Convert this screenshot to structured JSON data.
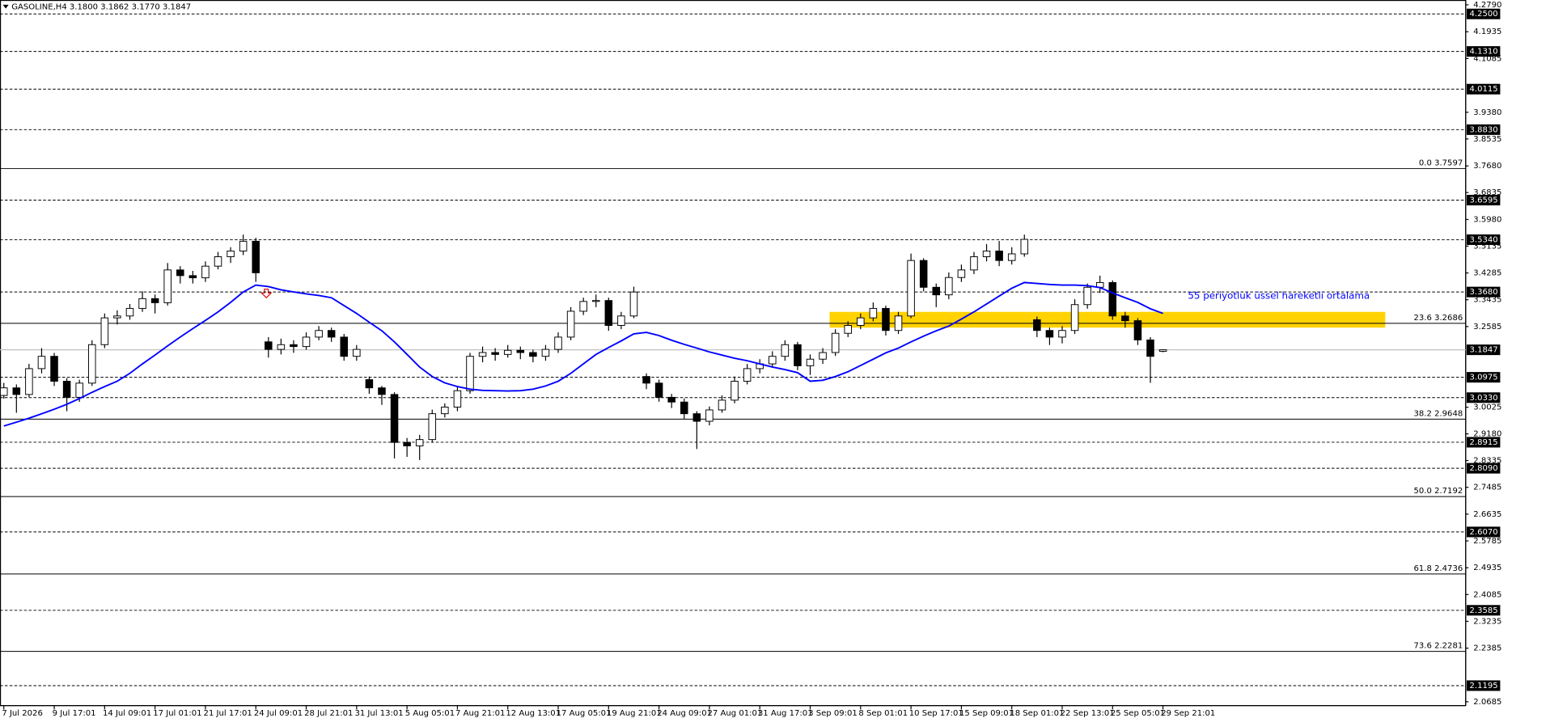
{
  "chart_data": {
    "type": "candlestick",
    "title": "GASOLINE,H4  3.1800 3.1862 3.1770 3.1847",
    "categories": [
      "7 Jul 2026",
      null,
      null,
      null,
      "9 Jul 17:01",
      null,
      null,
      null,
      "14 Jul 09:01",
      null,
      null,
      null,
      "17 Jul 01:01",
      null,
      null,
      null,
      "21 Jul 17:01",
      null,
      null,
      null,
      "24 Jul 09:01",
      null,
      null,
      null,
      "28 Jul 21:01",
      null,
      null,
      null,
      "31 Jul 13:01",
      null,
      null,
      null,
      "5 Aug 05:01",
      null,
      null,
      null,
      "7 Aug 21:01",
      null,
      null,
      null,
      "12 Aug 13:01",
      null,
      null,
      null,
      "17 Aug 05:01",
      null,
      null,
      null,
      "19 Aug 21:01",
      null,
      null,
      null,
      "24 Aug 09:01",
      null,
      null,
      null,
      "27 Aug 01:01",
      null,
      null,
      null,
      "31 Aug 17:01",
      null,
      null,
      null,
      "3 Sep 09:01",
      null,
      null,
      null,
      "8 Sep 01:01",
      null,
      null,
      null,
      "10 Sep 17:01",
      null,
      null,
      null,
      "15 Sep 09:01",
      null,
      null,
      null,
      "18 Sep 01:01",
      null,
      null,
      null,
      "22 Sep 13:01",
      null,
      null,
      null,
      "25 Sep 05:01",
      null,
      null,
      null,
      "29 Sep 21:01"
    ],
    "candles": [
      [
        3.04,
        3.08,
        3.03,
        3.064
      ],
      [
        3.064,
        3.075,
        2.985,
        3.043
      ],
      [
        3.043,
        3.14,
        3.035,
        3.125
      ],
      [
        3.125,
        3.19,
        3.11,
        3.164
      ],
      [
        3.164,
        3.175,
        3.07,
        3.085
      ],
      [
        3.085,
        3.095,
        2.99,
        3.034
      ],
      [
        3.034,
        3.09,
        3.02,
        3.079
      ],
      [
        3.079,
        3.215,
        3.07,
        3.201
      ],
      [
        3.201,
        3.3,
        3.19,
        3.286
      ],
      [
        3.286,
        3.31,
        3.265,
        3.292
      ],
      [
        3.292,
        3.33,
        3.28,
        3.316
      ],
      [
        3.316,
        3.37,
        3.305,
        3.347
      ],
      [
        3.347,
        3.36,
        3.3,
        3.334
      ],
      [
        3.334,
        3.46,
        3.325,
        3.438
      ],
      [
        3.438,
        3.45,
        3.395,
        3.42
      ],
      [
        3.42,
        3.435,
        3.395,
        3.413
      ],
      [
        3.413,
        3.465,
        3.4,
        3.45
      ],
      [
        3.45,
        3.495,
        3.44,
        3.48
      ],
      [
        3.48,
        3.51,
        3.46,
        3.498
      ],
      [
        3.498,
        3.55,
        3.485,
        3.529
      ],
      [
        3.529,
        3.54,
        3.4,
        3.429
      ],
      [
        3.21,
        3.225,
        3.16,
        3.186
      ],
      [
        3.186,
        3.22,
        3.17,
        3.201
      ],
      [
        3.201,
        3.215,
        3.175,
        3.195
      ],
      [
        3.195,
        3.24,
        3.185,
        3.225
      ],
      [
        3.225,
        3.26,
        3.215,
        3.246
      ],
      [
        3.246,
        3.255,
        3.21,
        3.225
      ],
      [
        3.225,
        3.235,
        3.15,
        3.164
      ],
      [
        3.164,
        3.2,
        3.15,
        3.186
      ],
      [
        3.09,
        3.1,
        3.045,
        3.064
      ],
      [
        3.064,
        3.07,
        3.01,
        3.043
      ],
      [
        3.043,
        3.05,
        2.84,
        2.891
      ],
      [
        2.891,
        2.905,
        2.845,
        2.88
      ],
      [
        2.88,
        2.915,
        2.835,
        2.9
      ],
      [
        2.9,
        2.995,
        2.89,
        2.982
      ],
      [
        2.982,
        3.015,
        2.97,
        3.003
      ],
      [
        3.003,
        3.07,
        2.99,
        3.055
      ],
      [
        3.055,
        3.175,
        3.045,
        3.164
      ],
      [
        3.164,
        3.195,
        3.145,
        3.176
      ],
      [
        3.176,
        3.19,
        3.15,
        3.17
      ],
      [
        3.17,
        3.2,
        3.16,
        3.183
      ],
      [
        3.183,
        3.195,
        3.155,
        3.176
      ],
      [
        3.176,
        3.185,
        3.145,
        3.164
      ],
      [
        3.164,
        3.2,
        3.15,
        3.186
      ],
      [
        3.186,
        3.24,
        3.175,
        3.225
      ],
      [
        3.225,
        3.32,
        3.215,
        3.307
      ],
      [
        3.307,
        3.35,
        3.295,
        3.338
      ],
      [
        3.338,
        3.36,
        3.32,
        3.341
      ],
      [
        3.341,
        3.35,
        3.245,
        3.262
      ],
      [
        3.262,
        3.305,
        3.25,
        3.292
      ],
      [
        3.292,
        3.385,
        3.285,
        3.368
      ],
      [
        3.1,
        3.11,
        3.06,
        3.079
      ],
      [
        3.079,
        3.09,
        3.02,
        3.034
      ],
      [
        3.034,
        3.045,
        3.0,
        3.019
      ],
      [
        3.019,
        3.03,
        2.965,
        2.982
      ],
      [
        2.982,
        2.99,
        2.87,
        2.958
      ],
      [
        2.958,
        3.005,
        2.945,
        2.994
      ],
      [
        2.994,
        3.04,
        2.985,
        3.025
      ],
      [
        3.025,
        3.1,
        3.015,
        3.085
      ],
      [
        3.085,
        3.14,
        3.075,
        3.125
      ],
      [
        3.125,
        3.155,
        3.11,
        3.14
      ],
      [
        3.14,
        3.18,
        3.13,
        3.164
      ],
      [
        3.164,
        3.215,
        3.15,
        3.201
      ],
      [
        3.201,
        3.21,
        3.12,
        3.134
      ],
      [
        3.134,
        3.17,
        3.105,
        3.155
      ],
      [
        3.155,
        3.19,
        3.14,
        3.176
      ],
      [
        3.176,
        3.25,
        3.165,
        3.237
      ],
      [
        3.237,
        3.275,
        3.225,
        3.262
      ],
      [
        3.262,
        3.3,
        3.25,
        3.286
      ],
      [
        3.286,
        3.335,
        3.275,
        3.316
      ],
      [
        3.316,
        3.325,
        3.23,
        3.246
      ],
      [
        3.246,
        3.305,
        3.235,
        3.292
      ],
      [
        3.292,
        3.49,
        3.285,
        3.468
      ],
      [
        3.468,
        3.475,
        3.37,
        3.383
      ],
      [
        3.383,
        3.395,
        3.32,
        3.359
      ],
      [
        3.359,
        3.43,
        3.345,
        3.414
      ],
      [
        3.414,
        3.455,
        3.4,
        3.438
      ],
      [
        3.438,
        3.495,
        3.425,
        3.48
      ],
      [
        3.48,
        3.52,
        3.465,
        3.498
      ],
      [
        3.498,
        3.53,
        3.45,
        3.468
      ],
      [
        3.468,
        3.51,
        3.455,
        3.489
      ],
      [
        3.489,
        3.55,
        3.48,
        3.535
      ],
      [
        3.28,
        3.29,
        3.225,
        3.246
      ],
      [
        3.246,
        3.255,
        3.2,
        3.225
      ],
      [
        3.225,
        3.26,
        3.205,
        3.246
      ],
      [
        3.246,
        3.345,
        3.235,
        3.328
      ],
      [
        3.328,
        3.395,
        3.315,
        3.383
      ],
      [
        3.383,
        3.42,
        3.365,
        3.398
      ],
      [
        3.398,
        3.405,
        3.28,
        3.292
      ],
      [
        3.292,
        3.305,
        3.255,
        3.277
      ],
      [
        3.277,
        3.285,
        3.2,
        3.216
      ],
      [
        3.216,
        3.225,
        3.08,
        3.164
      ],
      [
        3.18,
        3.1862,
        3.177,
        3.1847
      ]
    ],
    "up_color": "#ffffff",
    "down_color": "#000000",
    "ema": {
      "color": "#0000ff",
      "values": [
        2.943,
        2.955,
        2.968,
        2.982,
        2.996,
        3.012,
        3.03,
        3.05,
        3.068,
        3.085,
        3.11,
        3.14,
        3.168,
        3.197,
        3.225,
        3.252,
        3.278,
        3.305,
        3.335,
        3.368,
        3.39,
        3.385,
        3.375,
        3.368,
        3.362,
        3.357,
        3.35,
        3.325,
        3.3,
        3.272,
        3.245,
        3.21,
        3.17,
        3.13,
        3.1,
        3.08,
        3.068,
        3.06,
        3.056,
        3.055,
        3.054,
        3.055,
        3.06,
        3.07,
        3.085,
        3.11,
        3.14,
        3.17,
        3.192,
        3.213,
        3.235,
        3.24,
        3.23,
        3.215,
        3.202,
        3.19,
        3.178,
        3.168,
        3.158,
        3.15,
        3.14,
        3.13,
        3.122,
        3.112,
        3.085,
        3.088,
        3.1,
        3.115,
        3.135,
        3.155,
        3.175,
        3.19,
        3.21,
        3.228,
        3.245,
        3.26,
        3.282,
        3.305,
        3.33,
        3.355,
        3.38,
        3.398,
        3.395,
        3.392,
        3.39,
        3.39,
        3.388,
        3.382,
        3.365,
        3.35,
        3.335,
        3.315,
        3.3
      ]
    },
    "annotation": "55 periyotluk üssel hareketli ortalama",
    "annotation_color": "#0000ff",
    "zone": {
      "ylim": [
        3.255,
        3.305
      ],
      "color": "#ffd200"
    },
    "levels": [
      {
        "value": 4.25,
        "label": "4.2500"
      },
      {
        "value": 4.131,
        "label": "4.1310"
      },
      {
        "value": 4.0115,
        "label": "4.0115"
      },
      {
        "value": 3.883,
        "label": "3.8830"
      },
      {
        "value": 3.6595,
        "label": "3.6595"
      },
      {
        "value": 3.534,
        "label": "3.5340"
      },
      {
        "value": 3.368,
        "label": "3.3680"
      },
      {
        "value": 3.0975,
        "label": "3.0975"
      },
      {
        "value": 3.033,
        "label": "3.0330"
      },
      {
        "value": 2.8915,
        "label": "2.8915"
      },
      {
        "value": 2.809,
        "label": "2.8090"
      },
      {
        "value": 2.607,
        "label": "2.6070"
      },
      {
        "value": 2.3585,
        "label": "2.3585"
      },
      {
        "value": 2.1195,
        "label": "2.1195"
      }
    ],
    "current_price": {
      "value": 3.1847,
      "label": "3.1847"
    },
    "fib_levels": [
      {
        "value": 3.7597,
        "label": "0.0 3.7597"
      },
      {
        "value": 3.2686,
        "label": "23.6 3.2686"
      },
      {
        "value": 2.9648,
        "label": "38.2 2.9648"
      },
      {
        "value": 2.7192,
        "label": "50.0 2.7192"
      },
      {
        "value": 2.4736,
        "label": "61.8 2.4736"
      },
      {
        "value": 2.2281,
        "label": "73.6 2.2281"
      }
    ],
    "ylim": [
      2.0685,
      4.279
    ],
    "yticks": [
      {
        "value": 4.279,
        "label": "4.2790"
      },
      {
        "value": 4.1935,
        "label": "4.1935"
      },
      {
        "value": 4.1085,
        "label": "4.1085"
      },
      {
        "value": 3.938,
        "label": "3.9380"
      },
      {
        "value": 3.8535,
        "label": "3.8535"
      },
      {
        "value": 3.768,
        "label": "3.7680"
      },
      {
        "value": 3.6835,
        "label": "3.6835"
      },
      {
        "value": 3.598,
        "label": "3.5980"
      },
      {
        "value": 3.5135,
        "label": "3.5135"
      },
      {
        "value": 3.4285,
        "label": "3.4285"
      },
      {
        "value": 3.3435,
        "label": "3.3435"
      },
      {
        "value": 3.2585,
        "label": "3.2585"
      },
      {
        "value": 3.0025,
        "label": "3.0025"
      },
      {
        "value": 2.918,
        "label": "2.9180"
      },
      {
        "value": 2.8335,
        "label": "2.8335"
      },
      {
        "value": 2.7485,
        "label": "2.7485"
      },
      {
        "value": 2.6635,
        "label": "2.6635"
      },
      {
        "value": 2.5785,
        "label": "2.5785"
      },
      {
        "value": 2.4935,
        "label": "2.4935"
      },
      {
        "value": 2.4085,
        "label": "2.4085"
      },
      {
        "value": 2.3235,
        "label": "2.3235"
      },
      {
        "value": 2.2385,
        "label": "2.2385"
      },
      {
        "value": 2.0685,
        "label": "2.0685"
      }
    ]
  }
}
